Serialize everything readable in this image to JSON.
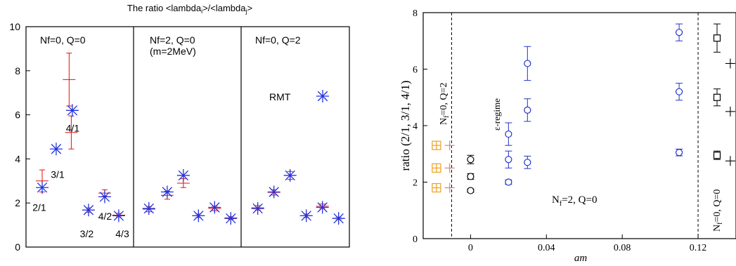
{
  "chart_data": [
    {
      "type": "scatter",
      "title_parts": [
        "The ratio <lambda",
        "i",
        ">/<lambda",
        "j",
        ">"
      ],
      "ylim": [
        0,
        10
      ],
      "yticks": [
        0,
        2,
        4,
        6,
        8,
        10
      ],
      "panels": [
        {
          "label_lines": [
            "Nf=0, Q=0"
          ],
          "x_range": [
            0,
            10
          ]
        },
        {
          "label_lines": [
            "Nf=2, Q=0",
            "(m=2MeV)"
          ],
          "x_range": [
            10,
            20
          ]
        },
        {
          "label_lines": [
            "Nf=0, Q=2"
          ],
          "x_range": [
            20,
            30
          ]
        }
      ],
      "rmt_legend_label": "RMT",
      "series": [
        {
          "color": "#dd1111",
          "marker": "plus-errorbar",
          "points": [
            {
              "x": 1.5,
              "y": 3.0,
              "err": 0.5
            },
            {
              "x": 4.2,
              "y": 5.2,
              "err": 0.75
            },
            {
              "x": 4.0,
              "y": 7.6,
              "err": 1.2
            },
            {
              "x": 5.8,
              "y": 1.68,
              "err": 0.1
            },
            {
              "x": 7.3,
              "y": 2.45,
              "err": 0.15
            },
            {
              "x": 8.6,
              "y": 1.45,
              "err": 0.08
            },
            {
              "x": 11.4,
              "y": 1.72,
              "err": 0.12
            },
            {
              "x": 13.1,
              "y": 2.35,
              "err": 0.18
            },
            {
              "x": 14.6,
              "y": 2.9,
              "err": 0.2
            },
            {
              "x": 16.0,
              "y": 1.42,
              "err": 0.08
            },
            {
              "x": 17.5,
              "y": 1.75,
              "err": 0.1
            },
            {
              "x": 19.0,
              "y": 1.32,
              "err": 0.06
            },
            {
              "x": 21.5,
              "y": 1.78,
              "err": 0.1
            },
            {
              "x": 23.0,
              "y": 2.48,
              "err": 0.12
            },
            {
              "x": 24.5,
              "y": 3.25,
              "err": 0.18
            },
            {
              "x": 26.0,
              "y": 1.42,
              "err": 0.08
            },
            {
              "x": 27.5,
              "y": 1.85,
              "err": 0.1
            },
            {
              "x": 29.0,
              "y": 1.3,
              "err": 0.06
            }
          ]
        },
        {
          "color": "#2233dd",
          "marker": "asterisk",
          "points": [
            {
              "x": 1.5,
              "y": 2.7
            },
            {
              "x": 2.8,
              "y": 4.45
            },
            {
              "x": 4.3,
              "y": 6.2
            },
            {
              "x": 5.8,
              "y": 1.68
            },
            {
              "x": 7.3,
              "y": 2.28
            },
            {
              "x": 8.6,
              "y": 1.42
            },
            {
              "x": 11.4,
              "y": 1.75
            },
            {
              "x": 13.1,
              "y": 2.5
            },
            {
              "x": 14.6,
              "y": 3.25
            },
            {
              "x": 16.0,
              "y": 1.42
            },
            {
              "x": 17.5,
              "y": 1.8
            },
            {
              "x": 19.0,
              "y": 1.3
            },
            {
              "x": 21.5,
              "y": 1.75
            },
            {
              "x": 23.0,
              "y": 2.5
            },
            {
              "x": 24.5,
              "y": 3.25
            },
            {
              "x": 26.0,
              "y": 1.42
            },
            {
              "x": 27.5,
              "y": 1.8
            },
            {
              "x": 29.0,
              "y": 1.3
            }
          ]
        }
      ],
      "annotations": [
        {
          "text": "2/1",
          "x": 0.6,
          "y": 1.8
        },
        {
          "text": "3/1",
          "x": 2.3,
          "y": 3.3
        },
        {
          "text": "4/1",
          "x": 3.7,
          "y": 5.4
        },
        {
          "text": "3/2",
          "x": 5.0,
          "y": 0.6
        },
        {
          "text": "4/2",
          "x": 6.7,
          "y": 1.4
        },
        {
          "text": "4/3",
          "x": 8.3,
          "y": 0.6
        }
      ]
    },
    {
      "type": "scatter",
      "xlabel": "am",
      "ylabel": "ratio (2/1, 3/1, 4/1)",
      "xlim": [
        -0.025,
        0.14
      ],
      "ylim": [
        0,
        8
      ],
      "xticks": [
        0,
        0.04,
        0.08,
        0.12
      ],
      "xtick_labels": [
        "0",
        "0.04",
        "0.08",
        "0.12"
      ],
      "yticks": [
        0,
        2,
        4,
        6,
        8
      ],
      "vlines": [
        -0.01,
        0.12
      ],
      "text_labels": {
        "left_vertical_base": "N",
        "left_vertical_sub": "f",
        "left_vertical_rest": "=0, Q=2",
        "eps_regime": "ε-regime",
        "center_base": "N",
        "center_sub": "f",
        "center_rest": "=2, Q=0",
        "right_vertical_base": "N",
        "right_vertical_sub": "f",
        "right_vertical_rest": "=0, Q=0"
      },
      "series": [
        {
          "name": "",
          "color": "#f0a020",
          "marker": "boxed-plus",
          "points": [
            {
              "x": -0.018,
              "y": 3.3
            },
            {
              "x": -0.018,
              "y": 2.5
            },
            {
              "x": -0.018,
              "y": 1.8
            }
          ]
        },
        {
          "name": "",
          "color": "#c08080",
          "marker": "plus",
          "points": [
            {
              "x": -0.011,
              "y": 3.3
            },
            {
              "x": -0.011,
              "y": 2.5
            },
            {
              "x": -0.011,
              "y": 1.8
            }
          ]
        },
        {
          "name": "",
          "color": "#000000",
          "marker": "circle-errorbar",
          "points": [
            {
              "x": 0.0,
              "y": 2.8,
              "err": 0.15
            },
            {
              "x": 0.0,
              "y": 2.2,
              "err": 0.1
            },
            {
              "x": 0.0,
              "y": 1.7,
              "err": 0.06
            }
          ]
        },
        {
          "name": "",
          "color": "#2233cc",
          "marker": "circle-errorbar",
          "points": [
            {
              "x": 0.02,
              "y": 3.7,
              "err": 0.4
            },
            {
              "x": 0.02,
              "y": 2.8,
              "err": 0.3
            },
            {
              "x": 0.02,
              "y": 2.0,
              "err": 0.08
            },
            {
              "x": 0.03,
              "y": 6.2,
              "err": 0.6
            },
            {
              "x": 0.03,
              "y": 4.55,
              "err": 0.4
            },
            {
              "x": 0.03,
              "y": 2.7,
              "err": 0.22
            },
            {
              "x": 0.11,
              "y": 7.3,
              "err": 0.3
            },
            {
              "x": 0.11,
              "y": 5.2,
              "err": 0.3
            },
            {
              "x": 0.11,
              "y": 3.05,
              "err": 0.12
            }
          ]
        },
        {
          "name": "",
          "color": "#000000",
          "marker": "square-errorbar",
          "points": [
            {
              "x": 0.13,
              "y": 7.1,
              "err": 0.5
            },
            {
              "x": 0.13,
              "y": 5.0,
              "err": 0.3
            },
            {
              "x": 0.13,
              "y": 2.95,
              "err": 0.15
            }
          ]
        },
        {
          "name": "",
          "color": "#000000",
          "marker": "plus",
          "points": [
            {
              "x": 0.137,
              "y": 6.2
            },
            {
              "x": 0.137,
              "y": 4.5
            },
            {
              "x": 0.137,
              "y": 2.75
            }
          ]
        }
      ]
    }
  ]
}
